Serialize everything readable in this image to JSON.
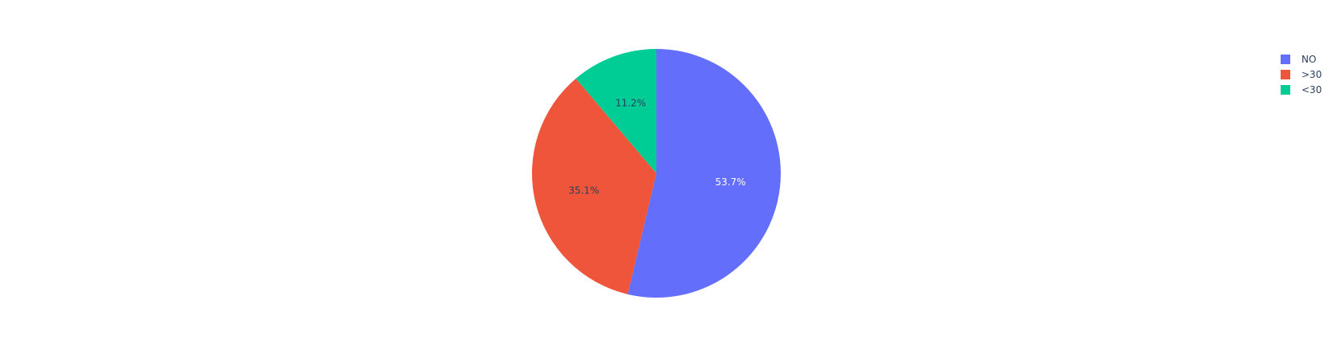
{
  "chart_data": {
    "type": "pie",
    "categories": [
      "NO",
      ">30",
      "<30"
    ],
    "values": [
      53.7,
      35.1,
      11.2
    ],
    "labels": [
      "53.7%",
      "35.1%",
      "11.2%"
    ],
    "colors": [
      "#636efa",
      "#ef553b",
      "#00cc96"
    ],
    "label_colors": [
      "#ffffff",
      "#2a3f5f",
      "#2a3f5f"
    ],
    "direction": "clockwise",
    "start_angle": "top",
    "legend_position": "top-right"
  },
  "legend": {
    "items": [
      {
        "label": "NO",
        "color": "#636efa"
      },
      {
        "label": ">30",
        "color": "#ef553b"
      },
      {
        "label": "<30",
        "color": "#00cc96"
      }
    ]
  }
}
